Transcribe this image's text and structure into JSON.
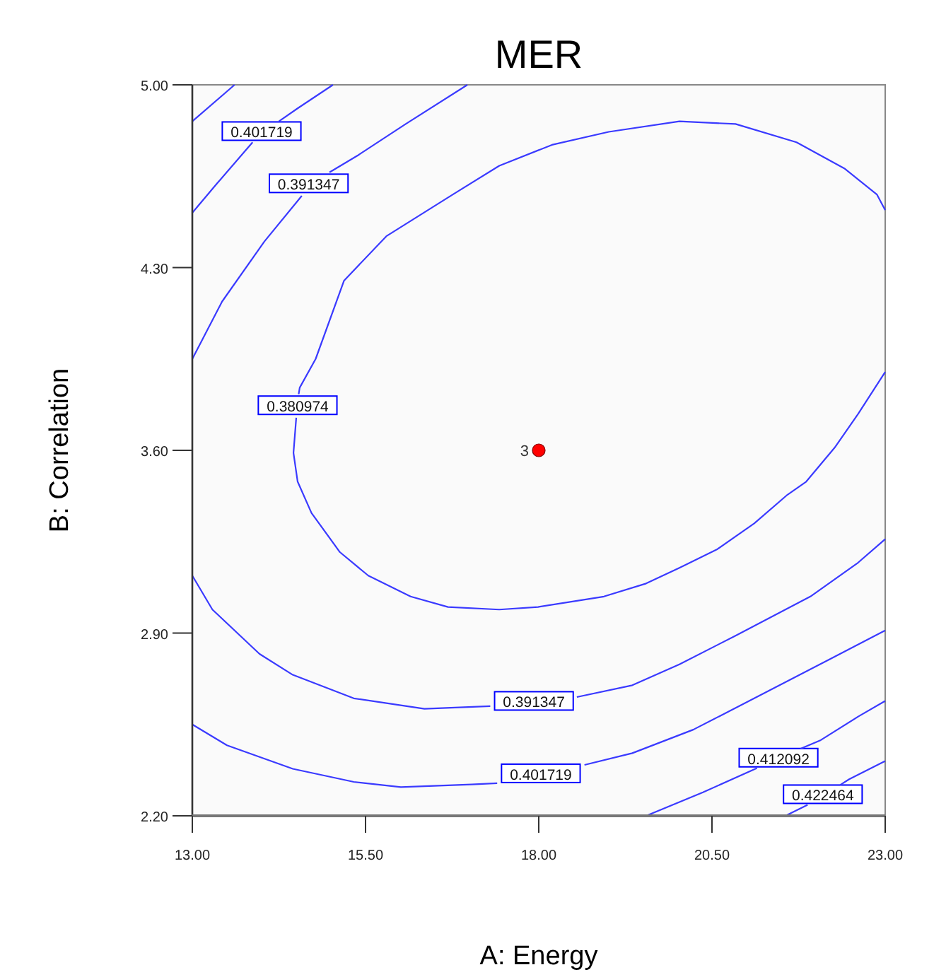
{
  "chart_data": {
    "type": "line",
    "title": "MER",
    "xlabel": "A: Energy",
    "ylabel": "B: Correlation",
    "xlim": [
      13,
      23
    ],
    "ylim": [
      2.2,
      5
    ],
    "xticks": [
      {
        "value": 13,
        "label": "13.00"
      },
      {
        "value": 15.5,
        "label": "15.50"
      },
      {
        "value": 18,
        "label": "18.00"
      },
      {
        "value": 20.5,
        "label": "20.50"
      },
      {
        "value": 23,
        "label": "23.00"
      }
    ],
    "yticks": [
      {
        "value": 2.2,
        "label": "2.20"
      },
      {
        "value": 2.9,
        "label": "2.90"
      },
      {
        "value": 3.6,
        "label": "3.60"
      },
      {
        "value": 4.3,
        "label": "4.30"
      },
      {
        "value": 5,
        "label": "5.00"
      }
    ],
    "grid": false,
    "legend": false,
    "marker": "none",
    "line_style": "solid",
    "series": [
      {
        "color": "#3a3aff",
        "x": [
          13.0,
          13.61
        ],
        "values": [
          4.86,
          5.0
        ]
      },
      {
        "name": "0.401719",
        "color": "#3a3aff",
        "x": [
          13.0,
          13.35,
          13.87,
          14.0,
          14.25,
          14.52,
          15.03
        ],
        "values": [
          4.51,
          4.62,
          4.78,
          null,
          4.86,
          4.91,
          5.0
        ]
      },
      {
        "name": "0.391347",
        "color": "#3a3aff",
        "x": [
          13.0,
          13.43,
          14.04,
          14.58,
          14.68,
          14.98,
          15.39,
          16.08,
          16.97
        ],
        "values": [
          3.95,
          4.17,
          4.4,
          4.575,
          null,
          4.665,
          4.73,
          4.85,
          5.0
        ]
      },
      {
        "name": "0.380974",
        "color": "#3a3aff",
        "x": [
          23.0,
          22.61,
          22.27,
          21.86,
          21.59,
          21.11,
          20.57,
          20.03,
          19.55,
          18.94,
          17.99,
          17.43,
          16.69,
          16.15,
          15.54,
          15.13,
          14.72,
          14.52,
          14.46,
          14.5,
          14.52,
          14.535,
          14.55,
          14.78,
          15.19,
          15.8,
          16.76,
          17.43,
          18.19,
          19.01,
          20.03,
          20.84,
          21.72,
          22.41,
          22.88,
          23.0
        ],
        "values": [
          3.9,
          3.74,
          3.61,
          3.48,
          3.43,
          3.32,
          3.22,
          3.15,
          3.09,
          3.04,
          3.0,
          2.99,
          3.0,
          3.04,
          3.12,
          3.21,
          3.36,
          3.48,
          3.59,
          3.725,
          null,
          3.815,
          3.84,
          3.95,
          4.25,
          4.42,
          4.58,
          4.69,
          4.77,
          4.82,
          4.86,
          4.85,
          4.78,
          4.68,
          4.58,
          4.52
        ]
      },
      {
        "name": "0.391347",
        "color": "#3a3aff",
        "x": [
          13.0,
          13.29,
          13.97,
          14.45,
          15.33,
          16.35,
          17.3,
          17.93,
          18.55,
          19.35,
          20.03,
          20.84,
          21.92,
          22.61,
          23.0
        ],
        "values": [
          3.12,
          2.99,
          2.82,
          2.74,
          2.65,
          2.61,
          2.62,
          null,
          2.655,
          2.7,
          2.78,
          2.89,
          3.04,
          3.17,
          3.26
        ]
      },
      {
        "name": "0.401719",
        "color": "#3a3aff",
        "x": [
          13.0,
          13.5,
          14.45,
          15.33,
          16.01,
          17.03,
          17.4,
          18.03,
          18.66,
          19.35,
          20.23,
          21.11,
          22.2,
          23.0
        ],
        "values": [
          2.55,
          2.47,
          2.38,
          2.33,
          2.31,
          2.32,
          2.325,
          null,
          2.395,
          2.44,
          2.53,
          2.65,
          2.8,
          2.91
        ]
      },
      {
        "name": "0.412092",
        "color": "#3a3aff",
        "x": [
          19.55,
          20.37,
          21.15,
          21.46,
          21.78,
          22.07,
          22.61,
          23.0
        ],
        "values": [
          2.2,
          2.29,
          2.383,
          null,
          2.457,
          2.49,
          2.58,
          2.64
        ]
      },
      {
        "name": "0.422464",
        "color": "#3a3aff",
        "x": [
          21.56,
          21.88,
          22.1,
          22.35,
          22.48,
          23.0
        ],
        "values": [
          2.2,
          2.242,
          null,
          2.318,
          2.34,
          2.41
        ]
      },
      {
        "type": "scatter",
        "color": "#ff0000",
        "marker": "circle",
        "x": [
          18
        ],
        "values": [
          3.6
        ]
      }
    ],
    "annotations": [
      {
        "text": "3",
        "x": 18,
        "y": 3.6
      }
    ]
  }
}
